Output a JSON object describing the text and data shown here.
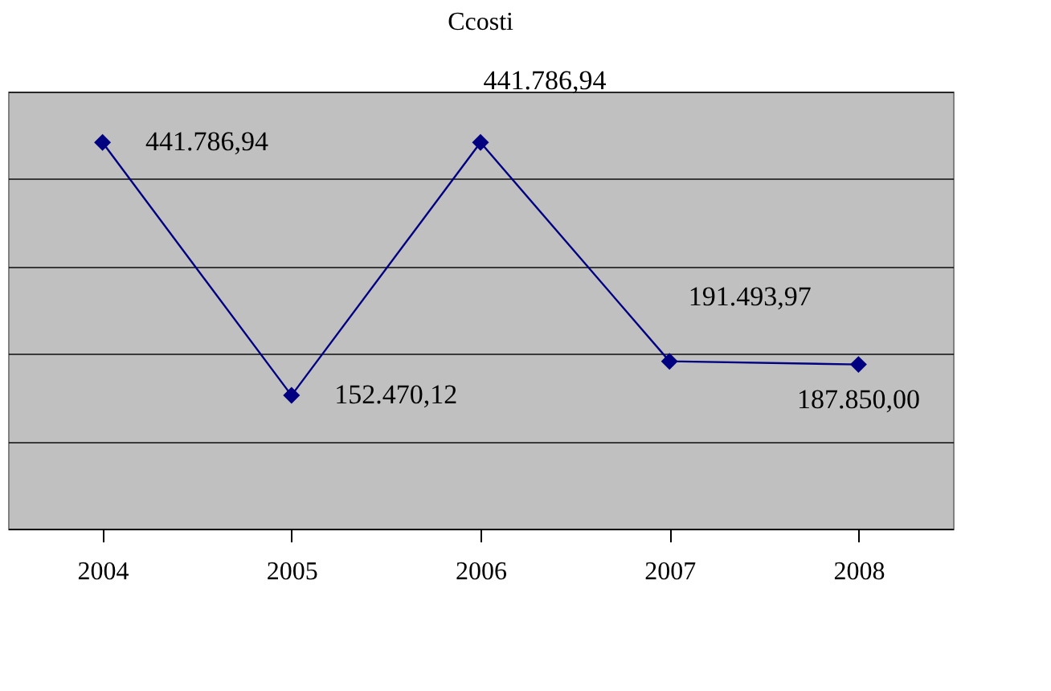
{
  "chart_data": {
    "type": "line",
    "title": "Ccosti",
    "categories": [
      "2004",
      "2005",
      "2006",
      "2007",
      "2008"
    ],
    "series": [
      {
        "color": "#000080",
        "values": [
          441786.94,
          152470.12,
          441786.94,
          191493.97,
          187850.0
        ],
        "value_labels": [
          "441.786,94",
          "152.470,12",
          "441.786,94",
          "191.493,97",
          "187.850,00"
        ]
      }
    ],
    "ylim": [
      0,
      500000
    ],
    "yticks": [
      {
        "value": 0,
        "label": null
      },
      {
        "value": 100000,
        "label": null
      },
      {
        "value": 200000,
        "label": null
      },
      {
        "value": 300000,
        "label": null
      },
      {
        "value": 400000,
        "label": null
      },
      {
        "value": 500000,
        "label": null
      }
    ],
    "tick_labels": "x",
    "grid": "y",
    "marker": "diamond",
    "line_style": "solid"
  }
}
